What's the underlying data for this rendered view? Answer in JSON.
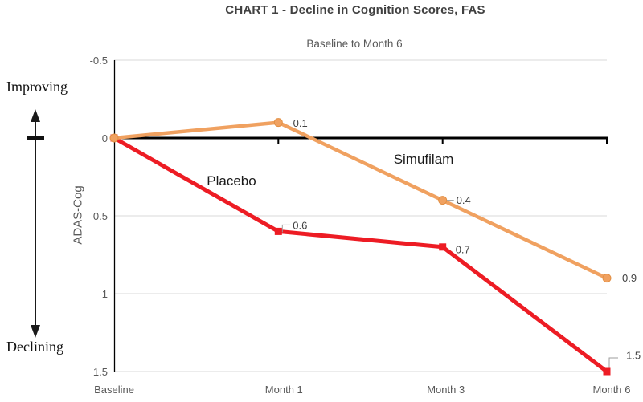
{
  "chart_data": {
    "type": "line",
    "title": "CHART 1 - Decline in Cognition Scores, FAS",
    "subtitle": "Baseline to Month 6",
    "ylabel": "ADAS-Cog",
    "categories": [
      "Baseline",
      "Month 1",
      "Month 3",
      "Month 6"
    ],
    "y_ticks": [
      -0.5,
      0,
      0.5,
      1,
      1.5
    ],
    "y_tick_labels": [
      "-0.5",
      "0",
      "0.5",
      "1",
      "1.5"
    ],
    "ylim": [
      -0.5,
      1.5
    ],
    "y_axis_inverted": true,
    "grid": true,
    "legend_position": "none",
    "series": [
      {
        "name": "Placebo",
        "color": "#ED1C24",
        "marker": "square",
        "values": [
          0,
          0.6,
          0.7,
          1.5
        ],
        "point_labels": [
          "",
          "0.6",
          "0.7",
          "1.5"
        ]
      },
      {
        "name": "Simufilam",
        "color": "#F0A160",
        "marker": "circle",
        "marker_outline": "#E28F43",
        "values": [
          0,
          -0.1,
          0.4,
          0.9
        ],
        "point_labels": [
          "",
          "-0.1",
          "0.4",
          "0.9"
        ]
      }
    ],
    "annotations": {
      "improving": "Improving",
      "declining": "Declining"
    },
    "colors": {
      "gridline": "#D9D9D9",
      "axis_line": "#000000",
      "zero_line": "#000000",
      "tick_text": "#595959",
      "data_label_text": "#404040",
      "leader_line": "#9E9E9E",
      "title_text": "#404040",
      "subtitle_text": "#595959"
    }
  }
}
